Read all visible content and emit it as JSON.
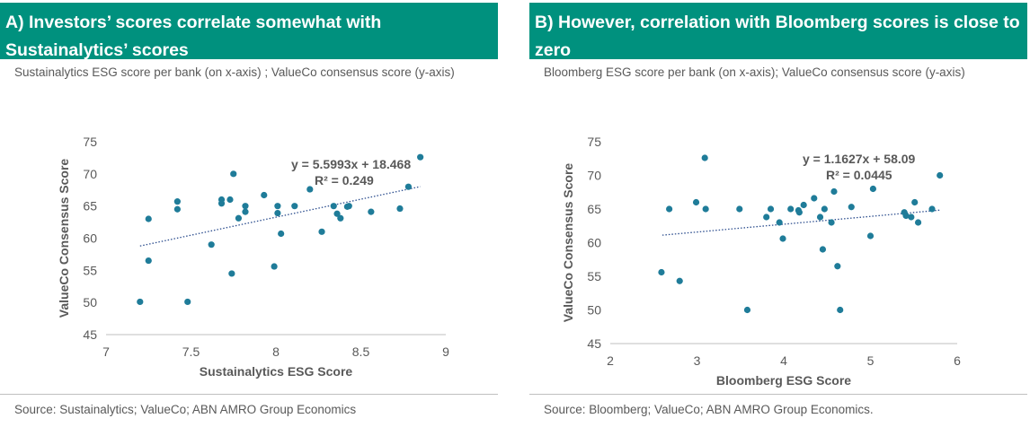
{
  "panels": [
    {
      "title": "A) Investors’ scores correlate somewhat with Sustainalytics’ scores",
      "subtitle": "Sustainalytics ESG score per bank (on x-axis) ; ValueCo consensus score (y-axis)",
      "source": "Source: Sustainalytics; ValueCo; ABN AMRO Group Economics"
    },
    {
      "title": "B) However, correlation with Bloomberg scores is close to zero",
      "subtitle": "Bloomberg ESG score per bank (on x-axis); ValueCo consensus score (y-axis)",
      "source": "Source: Bloomberg; ValueCo; ABN AMRO Group Economics."
    }
  ],
  "colors": {
    "title_bg": "#00917e",
    "title_text": "#ffffff",
    "marker": "#1f7c99",
    "trendline": "#2e4f8f",
    "text": "#595959"
  },
  "chart_data": [
    {
      "type": "scatter",
      "xlabel": "Sustainalytics ESG Score",
      "ylabel": "ValueCo Consensus Score",
      "xlim": [
        7,
        9
      ],
      "ylim": [
        45,
        75
      ],
      "xticks": [
        "7",
        "7.5",
        "8",
        "8.5",
        "9"
      ],
      "yticks": [
        "45",
        "50",
        "55",
        "60",
        "65",
        "70",
        "75"
      ],
      "grid": false,
      "annotation": [
        "y = 5.5993x + 18.468",
        "R² = 0.249"
      ],
      "trendline": {
        "slope": 5.5993,
        "intercept": 18.468,
        "x_range": [
          7.2,
          8.85
        ]
      },
      "x": [
        7.2,
        7.25,
        7.25,
        7.42,
        7.42,
        7.48,
        7.62,
        7.68,
        7.68,
        7.73,
        7.74,
        7.75,
        7.78,
        7.82,
        7.82,
        7.93,
        7.99,
        8.01,
        8.01,
        8.03,
        8.11,
        8.2,
        8.27,
        8.34,
        8.36,
        8.38,
        8.42,
        8.43,
        8.56,
        8.73,
        8.78,
        8.85
      ],
      "y": [
        50.1,
        63.0,
        56.5,
        65.7,
        64.5,
        50.1,
        59.0,
        66.0,
        65.4,
        66.0,
        54.5,
        70.0,
        63.1,
        65.0,
        64.1,
        66.7,
        55.6,
        65.0,
        63.9,
        60.7,
        65.0,
        67.6,
        61.0,
        65.0,
        63.8,
        63.1,
        64.9,
        65.0,
        64.1,
        64.6,
        68.0,
        72.6
      ]
    },
    {
      "type": "scatter",
      "xlabel": "Bloomberg ESG Score",
      "ylabel": "ValueCo Consensus Score",
      "xlim": [
        2,
        6
      ],
      "ylim": [
        45,
        75
      ],
      "xticks": [
        "2",
        "3",
        "4",
        "5",
        "6"
      ],
      "yticks": [
        "45",
        "50",
        "55",
        "60",
        "65",
        "70",
        "75"
      ],
      "grid": false,
      "annotation": [
        "y = 1.1627x + 58.09",
        "R² = 0.0445"
      ],
      "trendline": {
        "slope": 1.1627,
        "intercept": 58.09,
        "x_range": [
          2.6,
          5.8
        ]
      },
      "x": [
        2.59,
        2.68,
        2.8,
        2.99,
        3.09,
        3.1,
        3.49,
        3.58,
        3.8,
        3.85,
        3.95,
        3.99,
        4.08,
        4.17,
        4.18,
        4.23,
        4.35,
        4.42,
        4.45,
        4.47,
        4.55,
        4.58,
        4.62,
        4.65,
        4.78,
        5.0,
        5.03,
        5.39,
        5.41,
        5.47,
        5.51,
        5.55,
        5.71,
        5.8
      ],
      "y": [
        55.6,
        65.0,
        54.3,
        66.0,
        72.6,
        65.0,
        65.0,
        50.0,
        63.8,
        65.0,
        63.0,
        60.6,
        65.0,
        64.8,
        64.5,
        65.6,
        66.6,
        63.8,
        59.0,
        65.0,
        63.0,
        67.6,
        56.5,
        50.0,
        65.3,
        61.0,
        68.0,
        64.5,
        64.0,
        63.8,
        66.0,
        63.0,
        65.0,
        70.0
      ]
    }
  ]
}
